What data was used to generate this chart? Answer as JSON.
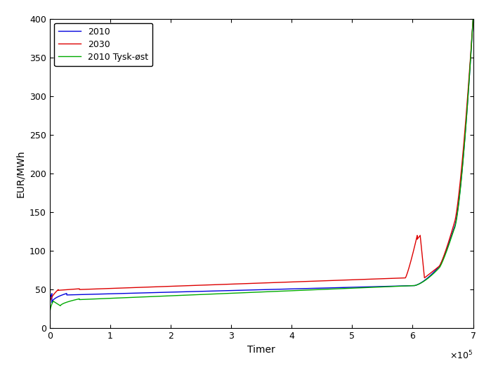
{
  "title": "",
  "xlabel": "Timer",
  "ylabel": "EUR/MWh",
  "xlim": [
    0,
    700000
  ],
  "ylim": [
    0,
    400
  ],
  "xticks": [
    0,
    100000,
    200000,
    300000,
    400000,
    500000,
    600000,
    700000
  ],
  "yticks": [
    0,
    50,
    100,
    150,
    200,
    250,
    300,
    350,
    400
  ],
  "legend_labels": [
    "2010",
    "2030",
    "2010 Tysk-øst"
  ],
  "line_colors": [
    "#0000dd",
    "#dd0000",
    "#00aa00"
  ],
  "line_width": 1.0,
  "background_color": "#ffffff",
  "fig_width": 7.09,
  "fig_height": 5.31,
  "dpi": 100
}
